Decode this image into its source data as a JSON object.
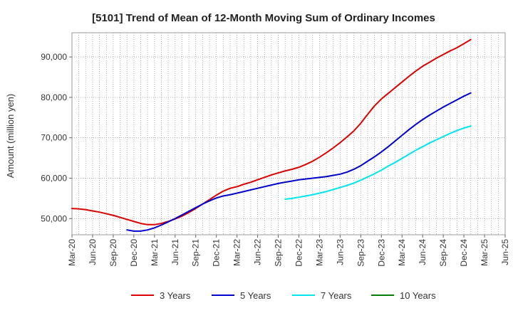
{
  "chart_data": {
    "type": "line",
    "title": "[5101]  Trend of Mean of 12-Month Moving Sum of Ordinary Incomes",
    "xlabel": "",
    "ylabel": "Amount (million yen)",
    "x_tick_labels": [
      "Mar-20",
      "Jun-20",
      "Sep-20",
      "Dec-20",
      "Mar-21",
      "Jun-21",
      "Sep-21",
      "Dec-21",
      "Mar-22",
      "Jun-22",
      "Sep-22",
      "Dec-22",
      "Mar-23",
      "Jun-23",
      "Sep-23",
      "Dec-23",
      "Mar-24",
      "Jun-24",
      "Sep-24",
      "Dec-24",
      "Mar-25",
      "Jun-25"
    ],
    "y_ticks": [
      50000,
      60000,
      70000,
      80000,
      90000
    ],
    "y_tick_labels": [
      "50,000",
      "60,000",
      "70,000",
      "80,000",
      "90,000"
    ],
    "ylim": [
      46000,
      96000
    ],
    "grid": true,
    "legend_position": "bottom",
    "series": [
      {
        "name": "3 Years",
        "color": "#dd0000",
        "values": [
          52500,
          52400,
          52200,
          51900,
          51600,
          51200,
          50800,
          50300,
          49800,
          49300,
          48800,
          48500,
          48500,
          48800,
          49300,
          49900,
          50600,
          51500,
          52500,
          53600,
          54700,
          55800,
          56800,
          57500,
          57900,
          58500,
          59000,
          59600,
          60200,
          60800,
          61300,
          61800,
          62200,
          62700,
          63400,
          64200,
          65200,
          66300,
          67500,
          68800,
          70200,
          71700,
          73600,
          75800,
          77900,
          79600,
          81000,
          82400,
          83800,
          85200,
          86500,
          87700,
          88700,
          89700,
          90600,
          91500,
          92300,
          93300,
          94300
        ]
      },
      {
        "name": "5 Years",
        "color": "#0000cc",
        "values": [
          null,
          null,
          null,
          null,
          null,
          null,
          null,
          null,
          47200,
          46900,
          46900,
          47200,
          47700,
          48400,
          49200,
          50000,
          50900,
          51800,
          52700,
          53600,
          54400,
          55100,
          55600,
          55900,
          56300,
          56700,
          57100,
          57500,
          57900,
          58300,
          58700,
          59000,
          59300,
          59600,
          59800,
          60000,
          60200,
          60400,
          60700,
          61000,
          61500,
          62200,
          63100,
          64200,
          65300,
          66500,
          67800,
          69200,
          70600,
          72000,
          73300,
          74500,
          75600,
          76600,
          77600,
          78500,
          79400,
          80300,
          81100
        ]
      },
      {
        "name": "7 Years",
        "color": "#00e5ee",
        "values": [
          null,
          null,
          null,
          null,
          null,
          null,
          null,
          null,
          null,
          null,
          null,
          null,
          null,
          null,
          null,
          null,
          null,
          null,
          null,
          null,
          null,
          null,
          null,
          null,
          null,
          null,
          null,
          null,
          null,
          null,
          null,
          54800,
          55000,
          55300,
          55600,
          55900,
          56300,
          56700,
          57200,
          57700,
          58200,
          58800,
          59500,
          60300,
          61100,
          62000,
          63000,
          63900,
          64900,
          65900,
          66900,
          67800,
          68700,
          69500,
          70300,
          71100,
          71800,
          72400,
          72900
        ]
      },
      {
        "name": "10 Years",
        "color": "#008000",
        "values": []
      }
    ]
  }
}
